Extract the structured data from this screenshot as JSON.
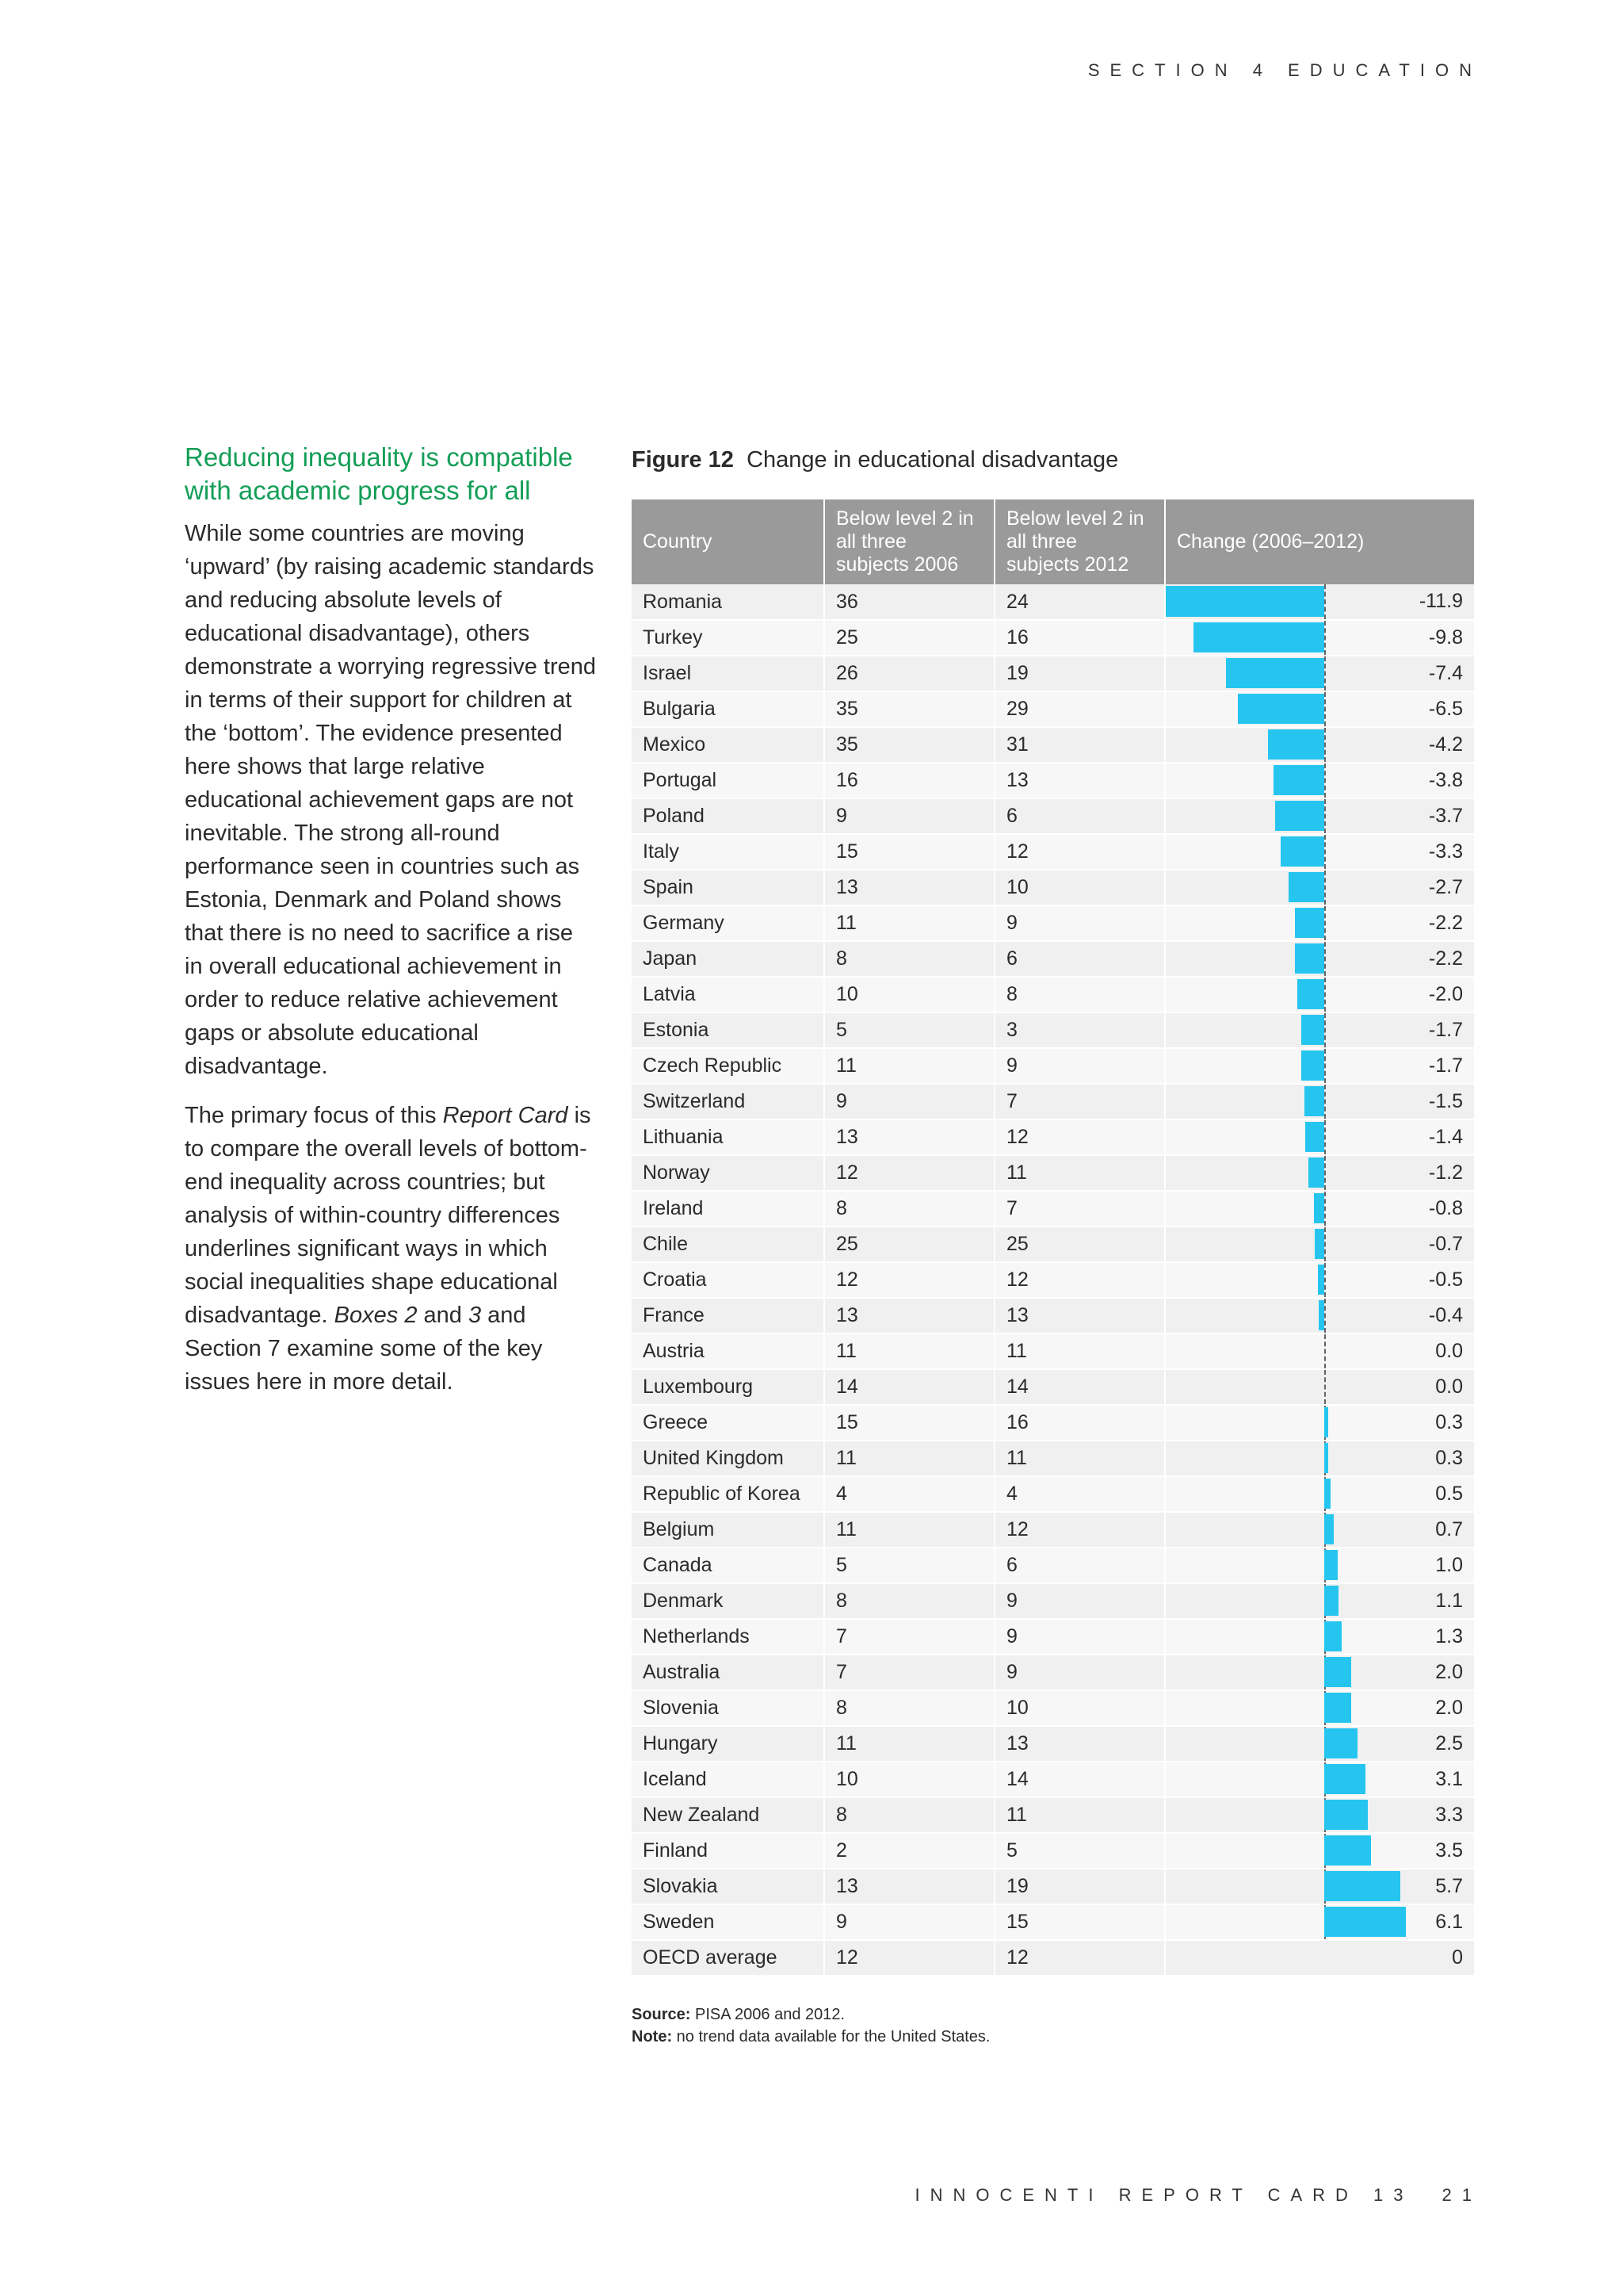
{
  "header": {
    "section": "SECTION 4 EDUCATION"
  },
  "sidebar": {
    "heading": "Reducing inequality is compatible with academic progress for all",
    "p1": "While some countries are moving ‘upward’ (by raising academic standards and reducing absolute levels of educational disadvantage), others demonstrate a worrying regressive trend in terms of their support for children at the ‘bottom’. The evidence presented here shows that large relative educational achievement gaps are not inevitable. The strong all-round performance seen in countries such as Estonia, Denmark and Poland shows that there is no need to sacrifice a rise in overall educational achievement in order to reduce relative achievement gaps or absolute educational disadvantage.",
    "p2_a": "The primary focus of this ",
    "p2_b": "Report Card",
    "p2_c": " is to compare the overall levels of bottom-end inequality across countries; but analysis of within-country differences underlines significant ways in which social inequalities shape educational disadvantage. ",
    "p2_d": "Boxes 2",
    "p2_e": " and ",
    "p2_f": "3",
    "p2_g": " and Section 7 examine some of the key issues here in more detail."
  },
  "figure": {
    "label": "Figure 12",
    "title": "Change in educational disadvantage",
    "columns": [
      "Country",
      "Below level 2 in all three subjects 2006",
      "Below level 2 in all three subjects 2012",
      "Change (2006–2012)"
    ],
    "source_label": "Source:",
    "source_text": "PISA 2006 and 2012.",
    "note_label": "Note:",
    "note_text": "no trend data available for the United States."
  },
  "chart_data": {
    "type": "table",
    "columns": [
      "Country",
      "Below level 2 in all three subjects 2006",
      "Below level 2 in all three subjects 2012",
      "Change (2006–2012)"
    ],
    "rows": [
      {
        "country": "Romania",
        "y2006": "36",
        "y2012": "24",
        "change": "-11.9",
        "value": -11.9
      },
      {
        "country": "Turkey",
        "y2006": "25",
        "y2012": "16",
        "change": "-9.8",
        "value": -9.8
      },
      {
        "country": "Israel",
        "y2006": "26",
        "y2012": "19",
        "change": "-7.4",
        "value": -7.4
      },
      {
        "country": "Bulgaria",
        "y2006": "35",
        "y2012": "29",
        "change": "-6.5",
        "value": -6.5
      },
      {
        "country": "Mexico",
        "y2006": "35",
        "y2012": "31",
        "change": "-4.2",
        "value": -4.2
      },
      {
        "country": "Portugal",
        "y2006": "16",
        "y2012": "13",
        "change": "-3.8",
        "value": -3.8
      },
      {
        "country": "Poland",
        "y2006": "9",
        "y2012": "6",
        "change": "-3.7",
        "value": -3.7
      },
      {
        "country": "Italy",
        "y2006": "15",
        "y2012": "12",
        "change": "-3.3",
        "value": -3.3
      },
      {
        "country": "Spain",
        "y2006": "13",
        "y2012": "10",
        "change": "-2.7",
        "value": -2.7
      },
      {
        "country": "Germany",
        "y2006": "11",
        "y2012": "9",
        "change": "-2.2",
        "value": -2.2
      },
      {
        "country": "Japan",
        "y2006": "8",
        "y2012": "6",
        "change": "-2.2",
        "value": -2.2
      },
      {
        "country": "Latvia",
        "y2006": "10",
        "y2012": "8",
        "change": "-2.0",
        "value": -2.0
      },
      {
        "country": "Estonia",
        "y2006": "5",
        "y2012": "3",
        "change": "-1.7",
        "value": -1.7
      },
      {
        "country": "Czech Republic",
        "y2006": "11",
        "y2012": "9",
        "change": "-1.7",
        "value": -1.7
      },
      {
        "country": "Switzerland",
        "y2006": "9",
        "y2012": "7",
        "change": "-1.5",
        "value": -1.5
      },
      {
        "country": "Lithuania",
        "y2006": "13",
        "y2012": "12",
        "change": "-1.4",
        "value": -1.4
      },
      {
        "country": "Norway",
        "y2006": "12",
        "y2012": "11",
        "change": "-1.2",
        "value": -1.2
      },
      {
        "country": "Ireland",
        "y2006": "8",
        "y2012": "7",
        "change": "-0.8",
        "value": -0.8
      },
      {
        "country": "Chile",
        "y2006": "25",
        "y2012": "25",
        "change": "-0.7",
        "value": -0.7
      },
      {
        "country": "Croatia",
        "y2006": "12",
        "y2012": "12",
        "change": "-0.5",
        "value": -0.5
      },
      {
        "country": "France",
        "y2006": "13",
        "y2012": "13",
        "change": "-0.4",
        "value": -0.4
      },
      {
        "country": "Austria",
        "y2006": "11",
        "y2012": "11",
        "change": "0.0",
        "value": 0.0
      },
      {
        "country": "Luxembourg",
        "y2006": "14",
        "y2012": "14",
        "change": "0.0",
        "value": 0.0
      },
      {
        "country": "Greece",
        "y2006": "15",
        "y2012": "16",
        "change": "0.3",
        "value": 0.3
      },
      {
        "country": "United Kingdom",
        "y2006": "11",
        "y2012": "11",
        "change": "0.3",
        "value": 0.3
      },
      {
        "country": "Republic of Korea",
        "y2006": "4",
        "y2012": "4",
        "change": "0.5",
        "value": 0.5
      },
      {
        "country": "Belgium",
        "y2006": "11",
        "y2012": "12",
        "change": "0.7",
        "value": 0.7
      },
      {
        "country": "Canada",
        "y2006": "5",
        "y2012": "6",
        "change": "1.0",
        "value": 1.0
      },
      {
        "country": "Denmark",
        "y2006": "8",
        "y2012": "9",
        "change": "1.1",
        "value": 1.1
      },
      {
        "country": "Netherlands",
        "y2006": "7",
        "y2012": "9",
        "change": "1.3",
        "value": 1.3
      },
      {
        "country": "Australia",
        "y2006": "7",
        "y2012": "9",
        "change": "2.0",
        "value": 2.0
      },
      {
        "country": "Slovenia",
        "y2006": "8",
        "y2012": "10",
        "change": "2.0",
        "value": 2.0
      },
      {
        "country": "Hungary",
        "y2006": "11",
        "y2012": "13",
        "change": "2.5",
        "value": 2.5
      },
      {
        "country": "Iceland",
        "y2006": "10",
        "y2012": "14",
        "change": "3.1",
        "value": 3.1
      },
      {
        "country": "New Zealand",
        "y2006": "8",
        "y2012": "11",
        "change": "3.3",
        "value": 3.3
      },
      {
        "country": "Finland",
        "y2006": "2",
        "y2012": "5",
        "change": "3.5",
        "value": 3.5
      },
      {
        "country": "Slovakia",
        "y2006": "13",
        "y2012": "19",
        "change": "5.7",
        "value": 5.7
      },
      {
        "country": "Sweden",
        "y2006": "9",
        "y2012": "15",
        "change": "6.1",
        "value": 6.1
      },
      {
        "country": "OECD average",
        "y2006": "12",
        "y2012": "12",
        "change": "0",
        "value": null
      }
    ],
    "bar_color": "#26c5f0",
    "value_range": [
      -11.9,
      6.1
    ]
  },
  "footer": {
    "report": "INNOCENTI REPORT CARD 13",
    "page": "21"
  }
}
